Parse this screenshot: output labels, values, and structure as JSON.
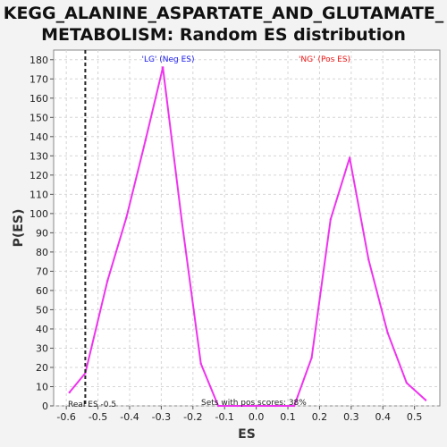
{
  "chart_data": {
    "type": "line",
    "title_line1": "KEGG_ALANINE_ASPARTATE_AND_GLUTAMATE_",
    "title_line2": "METABOLISM: Random ES distribution",
    "xlabel": "ES",
    "ylabel": "P(ES)",
    "xlim": [
      -0.64,
      0.58
    ],
    "ylim": [
      0,
      185
    ],
    "xticks": [
      "-0.6",
      "-0.5",
      "-0.4",
      "-0.3",
      "-0.2",
      "-0.1",
      "0.0",
      "0.1",
      "0.2",
      "0.3",
      "0.4",
      "0.5"
    ],
    "yticks": [
      "0",
      "10",
      "20",
      "30",
      "40",
      "50",
      "60",
      "70",
      "80",
      "90",
      "100",
      "110",
      "120",
      "130",
      "140",
      "150",
      "160",
      "170",
      "180"
    ],
    "grid": true,
    "series": [
      {
        "color": "#ee33ee",
        "x": [
          -0.59,
          -0.54,
          -0.47,
          -0.41,
          -0.35,
          -0.295,
          -0.235,
          -0.175,
          -0.12,
          -0.06,
          0.0,
          0.06,
          0.12,
          0.175,
          0.235,
          0.295,
          0.355,
          0.415,
          0.475,
          0.535
        ],
        "y": [
          7,
          17,
          65,
          98,
          138,
          176,
          96,
          22,
          0,
          0,
          0,
          0,
          0,
          25,
          97,
          129,
          76,
          38,
          12,
          3
        ]
      }
    ],
    "real_es": -0.54,
    "real_es_color": "#222222",
    "neg_label": "'LG' (Neg ES)",
    "neg_color": "#1a1aee",
    "pos_label": "'NG' (Pos ES)",
    "pos_color": "#ee1a1a",
    "real_es_label": "Real ES -0.5",
    "pos_scores_label": "Sets with pos scores: 38%"
  }
}
